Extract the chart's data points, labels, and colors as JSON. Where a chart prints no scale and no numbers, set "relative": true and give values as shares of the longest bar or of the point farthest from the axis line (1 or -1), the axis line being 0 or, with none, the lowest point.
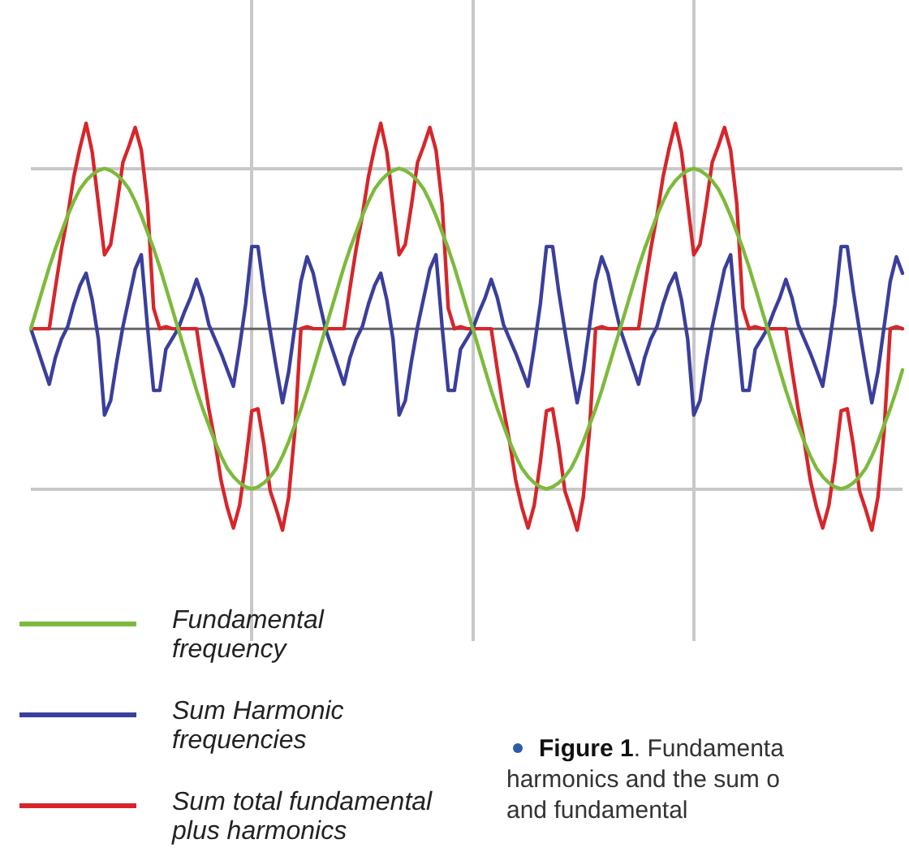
{
  "chart_data": {
    "type": "line",
    "relative": true,
    "marker": "none",
    "line_style": "solid",
    "grid": true,
    "legend": "bottom left",
    "annotations": [
      "Figure 1. Fundamenta\nharmonics and the sum o\nand fundamental"
    ],
    "categories": [
      null,
      null,
      null,
      null,
      null,
      null,
      null,
      null,
      null,
      null,
      null,
      null,
      null,
      null,
      null,
      null,
      null,
      null,
      null,
      null,
      null,
      null,
      null,
      null,
      null,
      null,
      null,
      null,
      null,
      null,
      null,
      null,
      null,
      null,
      null,
      null,
      null,
      null,
      null,
      null,
      null,
      null,
      null,
      null,
      null,
      null,
      null,
      null,
      null,
      null,
      null,
      null,
      null,
      null,
      null,
      null,
      null,
      null,
      null,
      null,
      null,
      null,
      null,
      null,
      null,
      null,
      null,
      null,
      null,
      null,
      null,
      null,
      null,
      null,
      null,
      null,
      null,
      null,
      null,
      null,
      null,
      null,
      null,
      null,
      null,
      null,
      null,
      null,
      null,
      null,
      null,
      null,
      null,
      null,
      null,
      null,
      null,
      null,
      null,
      null,
      null,
      null,
      null,
      null,
      null,
      null,
      null,
      null,
      null,
      null,
      null,
      null,
      null,
      null,
      null,
      null,
      null,
      null,
      null,
      null,
      null,
      null,
      null,
      null,
      null,
      null,
      null,
      null,
      null,
      null,
      null,
      null,
      null,
      null,
      null,
      null,
      null,
      null,
      null,
      null,
      null,
      null,
      null
    ],
    "series": [
      {
        "name": "Fundamental frequency",
        "color": "#7dba3c",
        "values": [
          0,
          0.1,
          0.2,
          0.3,
          0.39,
          0.47,
          0.55,
          0.62,
          0.68,
          0.72,
          0.75,
          0.77,
          0.78,
          0.77,
          0.75,
          0.72,
          0.68,
          0.62,
          0.55,
          0.47,
          0.39,
          0.3,
          0.2,
          0.1,
          0,
          -0.1,
          -0.2,
          -0.3,
          -0.39,
          -0.47,
          -0.55,
          -0.62,
          -0.68,
          -0.72,
          -0.75,
          -0.77,
          -0.78,
          -0.77,
          -0.75,
          -0.72,
          -0.68,
          -0.62,
          -0.55,
          -0.47,
          -0.39,
          -0.3,
          -0.2,
          -0.1,
          0,
          0.1,
          0.2,
          0.3,
          0.39,
          0.47,
          0.55,
          0.62,
          0.68,
          0.72,
          0.75,
          0.77,
          0.78,
          0.77,
          0.75,
          0.72,
          0.68,
          0.62,
          0.55,
          0.47,
          0.39,
          0.3,
          0.2,
          0.1,
          0,
          -0.1,
          -0.2,
          -0.3,
          -0.39,
          -0.47,
          -0.55,
          -0.62,
          -0.68,
          -0.72,
          -0.75,
          -0.77,
          -0.78,
          -0.77,
          -0.75,
          -0.72,
          -0.68,
          -0.62,
          -0.55,
          -0.47,
          -0.39,
          -0.3,
          -0.2,
          -0.1,
          0,
          0.1,
          0.2,
          0.3,
          0.39,
          0.47,
          0.55,
          0.62,
          0.68,
          0.72,
          0.75,
          0.77,
          0.78,
          0.77,
          0.75,
          0.72,
          0.68,
          0.62,
          0.55,
          0.47,
          0.39,
          0.3,
          0.2,
          0.1,
          0,
          -0.1,
          -0.2,
          -0.3,
          -0.39,
          -0.47,
          -0.55,
          -0.62,
          -0.68,
          -0.72,
          -0.75,
          -0.77,
          -0.78,
          -0.77,
          -0.75,
          -0.72,
          -0.68,
          -0.62,
          -0.55,
          -0.47,
          -0.39,
          -0.3,
          -0.2
        ]
      },
      {
        "name": "Sum Harmonic frequencies",
        "color": "#3a3f9c",
        "values": [
          0,
          -0.09,
          -0.18,
          -0.27,
          -0.14,
          -0.05,
          0.01,
          0.12,
          0.21,
          0.27,
          0.14,
          -0.05,
          -0.42,
          -0.35,
          -0.16,
          0.01,
          0.15,
          0.29,
          0.36,
          0.01,
          -0.3,
          -0.3,
          -0.1,
          -0.05,
          0,
          0.08,
          0.15,
          0.24,
          0.15,
          0.02,
          -0.05,
          -0.12,
          -0.2,
          -0.28,
          -0.09,
          0.12,
          0.4,
          0.4,
          0.18,
          -0.01,
          -0.19,
          -0.36,
          -0.21,
          0.01,
          0.23,
          0.35,
          0.27,
          0.13,
          0,
          -0.09,
          -0.18,
          -0.27,
          -0.14,
          -0.05,
          0.01,
          0.12,
          0.21,
          0.27,
          0.14,
          -0.05,
          -0.42,
          -0.35,
          -0.16,
          0.01,
          0.15,
          0.29,
          0.36,
          0.01,
          -0.3,
          -0.3,
          -0.1,
          -0.05,
          0,
          0.08,
          0.15,
          0.24,
          0.15,
          0.02,
          -0.05,
          -0.12,
          -0.2,
          -0.28,
          -0.09,
          0.12,
          0.4,
          0.4,
          0.18,
          -0.01,
          -0.19,
          -0.36,
          -0.21,
          0.01,
          0.23,
          0.35,
          0.27,
          0.13,
          0,
          -0.09,
          -0.18,
          -0.27,
          -0.14,
          -0.05,
          0.01,
          0.12,
          0.21,
          0.27,
          0.14,
          -0.05,
          -0.42,
          -0.35,
          -0.16,
          0.01,
          0.15,
          0.29,
          0.36,
          0.01,
          -0.3,
          -0.3,
          -0.1,
          -0.05,
          0,
          0.08,
          0.15,
          0.24,
          0.15,
          0.02,
          -0.05,
          -0.12,
          -0.2,
          -0.28,
          -0.09,
          0.12,
          0.4,
          0.4,
          0.18,
          -0.01,
          -0.19,
          -0.36,
          -0.21,
          0.01,
          0.23,
          0.35,
          0.27
        ]
      },
      {
        "name": "Sum total fundamental plus harmonics",
        "color": "#d6262b",
        "values": [
          0,
          0,
          0,
          0,
          0.2,
          0.39,
          0.55,
          0.74,
          0.88,
          1,
          0.86,
          0.61,
          0.36,
          0.41,
          0.6,
          0.81,
          0.89,
          0.98,
          0.87,
          0.61,
          0.1,
          0,
          0.01,
          0,
          0,
          0,
          0,
          0,
          -0.2,
          -0.39,
          -0.55,
          -0.74,
          -0.87,
          -0.97,
          -0.86,
          -0.65,
          -0.4,
          -0.39,
          -0.57,
          -0.79,
          -0.88,
          -0.98,
          -0.82,
          -0.5,
          0,
          0.01,
          0,
          0,
          0,
          0,
          0,
          0,
          0.2,
          0.39,
          0.55,
          0.74,
          0.88,
          1,
          0.86,
          0.61,
          0.36,
          0.41,
          0.6,
          0.81,
          0.89,
          0.98,
          0.87,
          0.61,
          0.1,
          0,
          0.01,
          0,
          0,
          0,
          0,
          0,
          -0.2,
          -0.39,
          -0.55,
          -0.74,
          -0.87,
          -0.97,
          -0.86,
          -0.65,
          -0.4,
          -0.39,
          -0.57,
          -0.79,
          -0.88,
          -0.98,
          -0.82,
          -0.5,
          0,
          0.01,
          0,
          0,
          0,
          0,
          0,
          0,
          0.2,
          0.39,
          0.55,
          0.74,
          0.88,
          1,
          0.86,
          0.61,
          0.36,
          0.41,
          0.6,
          0.81,
          0.89,
          0.98,
          0.87,
          0.61,
          0.1,
          0,
          0.01,
          0,
          0,
          0,
          0,
          0,
          -0.2,
          -0.39,
          -0.55,
          -0.74,
          -0.87,
          -0.97,
          -0.86,
          -0.65,
          -0.4,
          -0.39,
          -0.57,
          -0.79,
          -0.88,
          -0.98,
          -0.82,
          -0.5,
          0,
          0.01,
          0
        ]
      }
    ]
  }
}
